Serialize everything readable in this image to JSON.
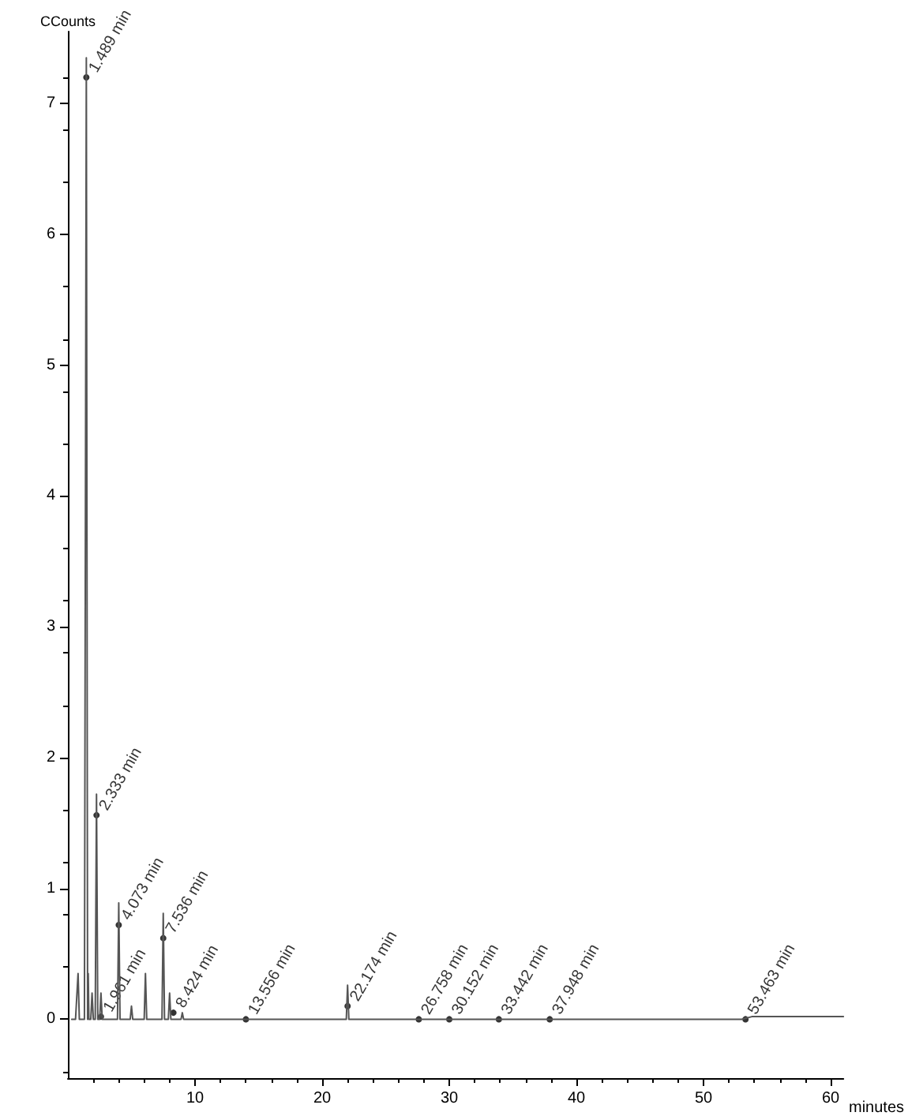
{
  "chart_data": {
    "type": "line",
    "xlabel": "minutes",
    "ylabel": "CCounts",
    "x": [
      0.3,
      0.6,
      0.8,
      0.9,
      1.0,
      1.3,
      1.45,
      1.55,
      1.6,
      1.65,
      1.8,
      1.9,
      2.0,
      2.15,
      2.25,
      2.35,
      2.5,
      2.6,
      2.7,
      3.5,
      3.9,
      4.0,
      4.1,
      4.9,
      5.0,
      5.1,
      6.0,
      6.1,
      6.2,
      7.4,
      7.5,
      7.6,
      7.9,
      8.0,
      8.1,
      8.9,
      9.0,
      9.1,
      21.9,
      22.0,
      22.1,
      40.0,
      53.0,
      53.8,
      55.0,
      61.0
    ],
    "values": [
      0,
      0,
      0.35,
      0,
      0,
      0,
      7.35,
      0,
      0.35,
      0,
      0,
      0.2,
      0,
      0,
      1.72,
      0,
      0,
      0.2,
      0,
      0,
      0,
      0.89,
      0,
      0,
      0.1,
      0,
      0,
      0.35,
      0,
      0,
      0.81,
      0,
      0,
      0.2,
      0,
      0,
      0.05,
      0,
      0,
      0.26,
      0,
      0,
      0,
      0.02,
      0.02,
      0.02
    ],
    "color": "#555555",
    "marker": "none",
    "xlim": [
      0,
      61
    ],
    "xticks": [
      10,
      20,
      30,
      40,
      50,
      60
    ],
    "ylim": [
      -0.45,
      7.55
    ],
    "yticks": [
      0,
      1,
      2,
      3,
      4,
      5,
      6,
      7
    ],
    "grid": false,
    "annotations": [
      {
        "text": "1.489 min",
        "x": 1.45,
        "y": 7.2
      },
      {
        "text": "2.333 min",
        "x": 2.25,
        "y": 1.56
      },
      {
        "text": "1.961 min",
        "x": 2.6,
        "y": 0.02
      },
      {
        "text": "4.073 min",
        "x": 4.0,
        "y": 0.72
      },
      {
        "text": "7.536 min",
        "x": 7.5,
        "y": 0.62
      },
      {
        "text": "8.424 min",
        "x": 8.3,
        "y": 0.05
      },
      {
        "text": "13.556 min",
        "x": 14.0,
        "y": 0
      },
      {
        "text": "22.174 min",
        "x": 22.0,
        "y": 0.1
      },
      {
        "text": "26.758 min",
        "x": 27.6,
        "y": 0
      },
      {
        "text": "30.152 min",
        "x": 30.0,
        "y": 0
      },
      {
        "text": "33.442 min",
        "x": 33.9,
        "y": 0
      },
      {
        "text": "37.948 min",
        "x": 37.9,
        "y": 0
      },
      {
        "text": "53.463 min",
        "x": 53.3,
        "y": 0
      }
    ]
  }
}
